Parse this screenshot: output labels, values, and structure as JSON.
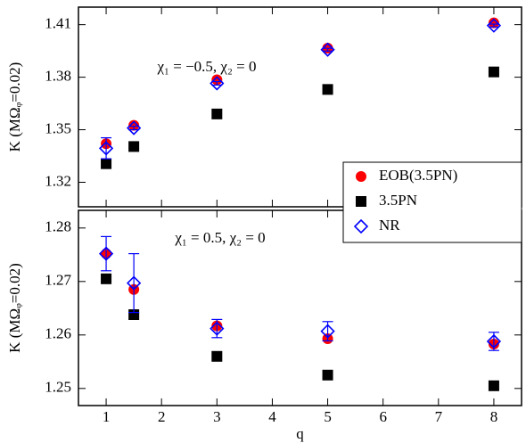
{
  "chart_data": [
    {
      "type": "scatter",
      "ylabel": "K (MΩᵩ=0.02)",
      "annotation": "χ₁ = −0.5, χ₂ = 0",
      "x": [
        1,
        1.5,
        3,
        5,
        8
      ],
      "xlim": [
        0.5,
        8.5
      ],
      "xticks": [
        1,
        2,
        3,
        4,
        5,
        6,
        7,
        8
      ],
      "ylim": [
        1.306,
        1.42
      ],
      "yticks": [
        1.32,
        1.35,
        1.38,
        1.41
      ],
      "series": [
        {
          "color": "#ff0000",
          "marker": "circle",
          "values": [
            1.342,
            1.3525,
            1.3785,
            1.3966,
            1.411
          ]
        },
        {
          "color": "#000000",
          "marker": "square",
          "values": [
            1.3306,
            1.3404,
            1.359,
            1.373,
            1.383
          ]
        },
        {
          "color": "#0000ff",
          "marker": "diamond",
          "values": [
            1.3394,
            1.351,
            1.3765,
            1.3957,
            1.4095
          ],
          "errors": [
            0.006,
            0.001,
            0.001,
            0.0008,
            0.0008
          ]
        }
      ]
    },
    {
      "type": "scatter",
      "ylabel": "K (MΩᵩ=0.02)",
      "xlabel": "q",
      "annotation": "χ₁ = 0.5, χ₂ = 0",
      "legend": "upper right",
      "x": [
        1,
        1.5,
        3,
        5,
        8
      ],
      "xlim": [
        0.5,
        8.5
      ],
      "xticks": [
        1,
        2,
        3,
        4,
        5,
        6,
        7,
        8
      ],
      "ylim": [
        1.2468,
        1.2833
      ],
      "yticks": [
        1.25,
        1.26,
        1.27,
        1.28
      ],
      "series": [
        {
          "name": "EOB(3.5PN)",
          "color": "#ff0000",
          "marker": "circle",
          "values": [
            1.2752,
            1.2685,
            1.2617,
            1.2593,
            1.2583
          ]
        },
        {
          "name": "3.5PN",
          "color": "#000000",
          "marker": "square",
          "values": [
            1.2705,
            1.2638,
            1.256,
            1.2525,
            1.2505
          ]
        },
        {
          "name": "NR",
          "color": "#0000ff",
          "marker": "diamond",
          "values": [
            1.2752,
            1.2697,
            1.2612,
            1.2607,
            1.2588
          ],
          "errors": [
            0.0032,
            0.0055,
            0.0017,
            0.0018,
            0.0017
          ]
        }
      ]
    }
  ]
}
